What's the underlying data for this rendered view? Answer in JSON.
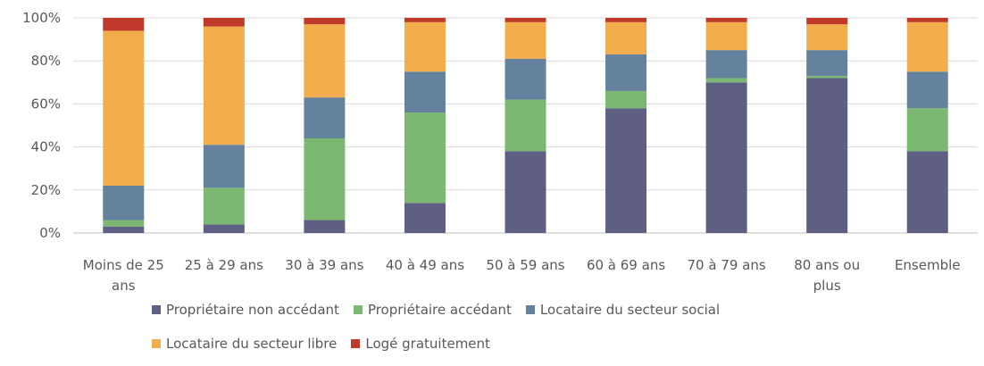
{
  "chart_data": {
    "type": "bar",
    "stacked": true,
    "percent": true,
    "categories": [
      "Moins de 25 ans",
      "25 à 29 ans",
      "30 à 39 ans",
      "40 à 49 ans",
      "50 à 59 ans",
      "60 à 69 ans",
      "70 à 79 ans",
      "80 ans ou plus",
      "Ensemble"
    ],
    "category_lines": [
      [
        "Moins de 25",
        "ans"
      ],
      [
        "25 à 29 ans"
      ],
      [
        "30 à 39 ans"
      ],
      [
        "40 à 49 ans"
      ],
      [
        "50 à 59 ans"
      ],
      [
        "60 à 69 ans"
      ],
      [
        "70 à 79 ans"
      ],
      [
        "80 ans ou",
        "plus"
      ],
      [
        "Ensemble"
      ]
    ],
    "ylim": [
      0,
      100
    ],
    "yticks": [
      0,
      20,
      40,
      60,
      80,
      100
    ],
    "ytick_labels": [
      "0%",
      "20%",
      "40%",
      "60%",
      "80%",
      "100%"
    ],
    "grid": true,
    "legend_position": "bottom",
    "series": [
      {
        "name": "Propriétaire non accédant",
        "color": "#5e5f82",
        "values": [
          3,
          4,
          6,
          14,
          38,
          58,
          70,
          72,
          38
        ]
      },
      {
        "name": "Propriétaire accédant",
        "color": "#7bb872",
        "values": [
          3,
          17,
          38,
          42,
          24,
          8,
          2,
          1,
          20
        ]
      },
      {
        "name": "Locataire du secteur social",
        "color": "#64819e",
        "values": [
          16,
          20,
          19,
          19,
          19,
          17,
          13,
          12,
          17
        ]
      },
      {
        "name": "Locataire du secteur libre",
        "color": "#f2ad4c",
        "values": [
          72,
          55,
          34,
          23,
          17,
          15,
          13,
          12,
          23
        ]
      },
      {
        "name": "Logé gratuitement",
        "color": "#c0392b",
        "values": [
          6,
          4,
          3,
          2,
          2,
          2,
          2,
          3,
          2
        ]
      }
    ]
  }
}
